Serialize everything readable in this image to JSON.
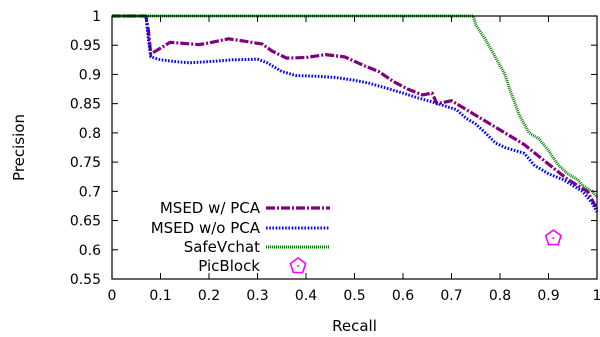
{
  "chart_data": {
    "type": "line",
    "title": "",
    "xlabel": "Recall",
    "ylabel": "Precision",
    "xlim": [
      0,
      1
    ],
    "ylim": [
      0.55,
      1
    ],
    "x_ticks": [
      "0",
      "0.1",
      "0.2",
      "0.3",
      "0.4",
      "0.5",
      "0.6",
      "0.7",
      "0.8",
      "0.9",
      "1"
    ],
    "y_ticks": [
      "0.55",
      "0.6",
      "0.65",
      "0.7",
      "0.75",
      "0.8",
      "0.85",
      "0.9",
      "0.95",
      "1"
    ],
    "grid": false,
    "legend": "bottom-left",
    "series": [
      {
        "name": "MSED w/ PCA",
        "color": "#800080",
        "style": "dash-dot",
        "points": [
          [
            0,
            1
          ],
          [
            0.07,
            1
          ],
          [
            0.075,
            0.975
          ],
          [
            0.08,
            0.935
          ],
          [
            0.1,
            0.945
          ],
          [
            0.12,
            0.955
          ],
          [
            0.15,
            0.953
          ],
          [
            0.18,
            0.951
          ],
          [
            0.2,
            0.954
          ],
          [
            0.24,
            0.961
          ],
          [
            0.28,
            0.956
          ],
          [
            0.31,
            0.952
          ],
          [
            0.33,
            0.94
          ],
          [
            0.36,
            0.928
          ],
          [
            0.4,
            0.929
          ],
          [
            0.44,
            0.934
          ],
          [
            0.48,
            0.93
          ],
          [
            0.52,
            0.915
          ],
          [
            0.55,
            0.905
          ],
          [
            0.58,
            0.888
          ],
          [
            0.61,
            0.875
          ],
          [
            0.64,
            0.865
          ],
          [
            0.66,
            0.868
          ],
          [
            0.67,
            0.85
          ],
          [
            0.7,
            0.855
          ],
          [
            0.73,
            0.84
          ],
          [
            0.76,
            0.825
          ],
          [
            0.79,
            0.81
          ],
          [
            0.82,
            0.795
          ],
          [
            0.85,
            0.78
          ],
          [
            0.88,
            0.76
          ],
          [
            0.91,
            0.74
          ],
          [
            0.94,
            0.72
          ],
          [
            0.96,
            0.71
          ],
          [
            0.98,
            0.7
          ],
          [
            1,
            0.67
          ]
        ]
      },
      {
        "name": "MSED w/o PCA",
        "color": "#0000ff",
        "style": "dotted",
        "points": [
          [
            0,
            1
          ],
          [
            0.07,
            1
          ],
          [
            0.075,
            0.96
          ],
          [
            0.08,
            0.93
          ],
          [
            0.1,
            0.925
          ],
          [
            0.13,
            0.922
          ],
          [
            0.16,
            0.92
          ],
          [
            0.2,
            0.922
          ],
          [
            0.25,
            0.925
          ],
          [
            0.3,
            0.926
          ],
          [
            0.32,
            0.92
          ],
          [
            0.35,
            0.905
          ],
          [
            0.38,
            0.898
          ],
          [
            0.42,
            0.897
          ],
          [
            0.46,
            0.895
          ],
          [
            0.5,
            0.89
          ],
          [
            0.53,
            0.885
          ],
          [
            0.56,
            0.878
          ],
          [
            0.6,
            0.868
          ],
          [
            0.63,
            0.86
          ],
          [
            0.66,
            0.853
          ],
          [
            0.69,
            0.845
          ],
          [
            0.71,
            0.84
          ],
          [
            0.73,
            0.825
          ],
          [
            0.75,
            0.815
          ],
          [
            0.77,
            0.8
          ],
          [
            0.79,
            0.783
          ],
          [
            0.81,
            0.775
          ],
          [
            0.83,
            0.77
          ],
          [
            0.85,
            0.765
          ],
          [
            0.87,
            0.745
          ],
          [
            0.9,
            0.73
          ],
          [
            0.93,
            0.72
          ],
          [
            0.95,
            0.71
          ],
          [
            0.97,
            0.7
          ],
          [
            0.99,
            0.68
          ],
          [
            1,
            0.665
          ]
        ]
      },
      {
        "name": "SafeVchat",
        "color": "#008000",
        "style": "fine-dotted",
        "points": [
          [
            0,
            1
          ],
          [
            0.745,
            1
          ],
          [
            0.75,
            0.985
          ],
          [
            0.77,
            0.96
          ],
          [
            0.79,
            0.93
          ],
          [
            0.81,
            0.9
          ],
          [
            0.82,
            0.875
          ],
          [
            0.84,
            0.83
          ],
          [
            0.86,
            0.8
          ],
          [
            0.88,
            0.79
          ],
          [
            0.9,
            0.77
          ],
          [
            0.92,
            0.745
          ],
          [
            0.94,
            0.73
          ],
          [
            0.96,
            0.72
          ],
          [
            0.97,
            0.71
          ],
          [
            0.99,
            0.7
          ],
          [
            1,
            0.69
          ]
        ]
      },
      {
        "name": "PicBlock",
        "color": "#ff00ff",
        "style": "pentagon-marker",
        "points": [
          [
            0.91,
            0.62
          ]
        ]
      }
    ]
  }
}
